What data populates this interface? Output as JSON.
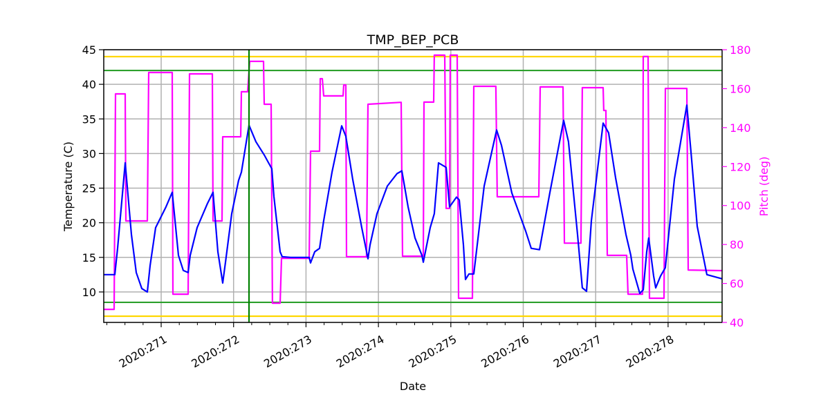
{
  "chart_data": {
    "type": "line",
    "title": "TMP_BEP_PCB",
    "xlabel": "Date",
    "ylabel": "Temperature (C)",
    "y2label": "Pitch (deg)",
    "xlim": [
      270.207,
      278.746
    ],
    "ylim": [
      5.6,
      45
    ],
    "y2lim": [
      40,
      180
    ],
    "grid": true,
    "x_tick_prefix": "2020:",
    "x_ticks": [
      271,
      272,
      273,
      274,
      275,
      276,
      277,
      278
    ],
    "x_tick_labels": [
      "2020:271",
      "2020:272",
      "2020:273",
      "2020:274",
      "2020:275",
      "2020:276",
      "2020:277",
      "2020:278"
    ],
    "y_ticks": [
      10,
      15,
      20,
      25,
      30,
      35,
      40,
      45
    ],
    "y_tick_labels": [
      "10",
      "15",
      "20",
      "25",
      "30",
      "35",
      "40",
      "45"
    ],
    "y2_ticks": [
      40,
      60,
      80,
      100,
      120,
      140,
      160,
      180
    ],
    "y2_tick_labels": [
      "40",
      "60",
      "80",
      "100",
      "120",
      "140",
      "160",
      "180"
    ],
    "colors": {
      "temperature": "#0000ff",
      "pitch": "#ff00ff",
      "planning_limit": "#2ca02c",
      "caution_limit": "#ffd700",
      "marker": "#008000",
      "grid": "#b0b0b0"
    },
    "horizontal_lines": [
      {
        "y": 44,
        "color": "#ffd700"
      },
      {
        "y": 42,
        "color": "#2ca02c"
      },
      {
        "y": 8.5,
        "color": "#2ca02c"
      },
      {
        "y": 6.5,
        "color": "#ffd700"
      }
    ],
    "vertical_line": {
      "x": 272.213,
      "color": "#008000"
    },
    "series": [
      {
        "axis": "left",
        "color": "#0000ff",
        "points": [
          [
            270.207,
            12.5
          ],
          [
            270.36,
            12.5
          ],
          [
            270.398,
            16.3
          ],
          [
            270.503,
            28.65
          ],
          [
            270.589,
            18.3
          ],
          [
            270.656,
            12.8
          ],
          [
            270.732,
            10.5
          ],
          [
            270.809,
            10.0
          ],
          [
            270.847,
            13.8
          ],
          [
            270.923,
            19.3
          ],
          [
            271.067,
            22.3
          ],
          [
            271.153,
            24.4
          ],
          [
            271.239,
            15.3
          ],
          [
            271.305,
            13.1
          ],
          [
            271.372,
            12.8
          ],
          [
            271.401,
            15.3
          ],
          [
            271.496,
            19.3
          ],
          [
            271.64,
            22.8
          ],
          [
            271.716,
            24.4
          ],
          [
            271.783,
            15.8
          ],
          [
            271.85,
            11.3
          ],
          [
            271.888,
            14.3
          ],
          [
            271.974,
            21.3
          ],
          [
            272.069,
            26.1
          ],
          [
            272.108,
            27.3
          ],
          [
            272.213,
            34.1
          ],
          [
            272.308,
            31.7
          ],
          [
            272.423,
            29.8
          ],
          [
            272.48,
            28.7
          ],
          [
            272.528,
            27.8
          ],
          [
            272.557,
            23.8
          ],
          [
            272.643,
            15.8
          ],
          [
            272.671,
            15.1
          ],
          [
            272.786,
            15.0
          ],
          [
            273.044,
            15.0
          ],
          [
            273.063,
            14.2
          ],
          [
            273.12,
            15.8
          ],
          [
            273.187,
            16.3
          ],
          [
            273.244,
            20.3
          ],
          [
            273.359,
            27.3
          ],
          [
            273.493,
            34.0
          ],
          [
            273.55,
            32.5
          ],
          [
            273.645,
            26.3
          ],
          [
            273.77,
            19.3
          ],
          [
            273.856,
            14.8
          ],
          [
            273.884,
            16.8
          ],
          [
            273.98,
            21.3
          ],
          [
            274.123,
            25.3
          ],
          [
            274.257,
            27.1
          ],
          [
            274.324,
            27.5
          ],
          [
            274.41,
            22.3
          ],
          [
            274.505,
            17.8
          ],
          [
            274.601,
            15.3
          ],
          [
            274.62,
            14.3
          ],
          [
            274.715,
            19.3
          ],
          [
            274.772,
            21.3
          ],
          [
            274.83,
            28.65
          ],
          [
            274.935,
            28.0
          ],
          [
            274.983,
            22.3
          ],
          [
            275.078,
            23.7
          ],
          [
            275.116,
            23.3
          ],
          [
            275.174,
            16.8
          ],
          [
            275.202,
            11.8
          ],
          [
            275.25,
            12.6
          ],
          [
            275.317,
            12.6
          ],
          [
            275.46,
            25.3
          ],
          [
            275.632,
            33.4
          ],
          [
            275.699,
            31.2
          ],
          [
            275.842,
            24.3
          ],
          [
            276.033,
            18.8
          ],
          [
            276.11,
            16.3
          ],
          [
            276.224,
            16.1
          ],
          [
            276.367,
            24.3
          ],
          [
            276.558,
            34.8
          ],
          [
            276.625,
            31.7
          ],
          [
            276.75,
            18.3
          ],
          [
            276.816,
            10.6
          ],
          [
            276.874,
            10.1
          ],
          [
            276.941,
            20.3
          ],
          [
            277.103,
            34.4
          ],
          [
            277.179,
            33.0
          ],
          [
            277.275,
            26.5
          ],
          [
            277.418,
            18.3
          ],
          [
            277.485,
            15.3
          ],
          [
            277.514,
            13.3
          ],
          [
            277.609,
            9.8
          ],
          [
            277.657,
            10.3
          ],
          [
            277.705,
            15.8
          ],
          [
            277.733,
            17.8
          ],
          [
            277.8,
            12.3
          ],
          [
            277.829,
            10.6
          ],
          [
            277.896,
            12.3
          ],
          [
            277.962,
            13.5
          ],
          [
            278.087,
            26.3
          ],
          [
            278.259,
            37.0
          ],
          [
            278.325,
            29.2
          ],
          [
            278.402,
            19.5
          ],
          [
            278.536,
            12.5
          ],
          [
            278.746,
            11.9
          ]
        ]
      },
      {
        "axis": "right",
        "color": "#ff00ff",
        "points": [
          [
            270.207,
            46.7
          ],
          [
            270.35,
            46.7
          ],
          [
            270.369,
            157.3
          ],
          [
            270.503,
            157.3
          ],
          [
            270.513,
            92.1
          ],
          [
            270.809,
            92.1
          ],
          [
            270.828,
            168.3
          ],
          [
            271.153,
            168.3
          ],
          [
            271.162,
            54.5
          ],
          [
            271.372,
            54.5
          ],
          [
            271.391,
            167.6
          ],
          [
            271.707,
            167.6
          ],
          [
            271.716,
            92.1
          ],
          [
            271.84,
            92.1
          ],
          [
            271.85,
            135.3
          ],
          [
            272.098,
            135.3
          ],
          [
            272.108,
            158.4
          ],
          [
            272.194,
            158.4
          ],
          [
            272.222,
            174.0
          ],
          [
            272.413,
            174.0
          ],
          [
            272.423,
            152.0
          ],
          [
            272.518,
            152.0
          ],
          [
            272.537,
            49.9
          ],
          [
            272.643,
            49.9
          ],
          [
            272.662,
            72.9
          ],
          [
            273.044,
            72.9
          ],
          [
            273.063,
            127.9
          ],
          [
            273.187,
            127.9
          ],
          [
            273.197,
            165.1
          ],
          [
            273.225,
            165.1
          ],
          [
            273.244,
            156.3
          ],
          [
            273.512,
            156.3
          ],
          [
            273.521,
            161.9
          ],
          [
            273.55,
            161.9
          ],
          [
            273.56,
            73.7
          ],
          [
            273.836,
            73.7
          ],
          [
            273.856,
            152.0
          ],
          [
            274.314,
            153.0
          ],
          [
            274.333,
            74.0
          ],
          [
            274.62,
            74.0
          ],
          [
            274.629,
            153.1
          ],
          [
            274.763,
            153.1
          ],
          [
            274.772,
            177.2
          ],
          [
            274.916,
            177.2
          ],
          [
            274.935,
            98.5
          ],
          [
            274.983,
            98.5
          ],
          [
            274.992,
            177.2
          ],
          [
            275.088,
            177.2
          ],
          [
            275.107,
            52.4
          ],
          [
            275.298,
            52.4
          ],
          [
            275.317,
            161.2
          ],
          [
            275.622,
            161.2
          ],
          [
            275.641,
            104.5
          ],
          [
            276.215,
            104.5
          ],
          [
            276.234,
            160.9
          ],
          [
            276.549,
            160.9
          ],
          [
            276.568,
            80.7
          ],
          [
            276.797,
            80.7
          ],
          [
            276.816,
            160.5
          ],
          [
            277.103,
            160.5
          ],
          [
            277.112,
            148.8
          ],
          [
            277.141,
            148.8
          ],
          [
            277.16,
            74.4
          ],
          [
            277.428,
            74.4
          ],
          [
            277.447,
            54.5
          ],
          [
            277.647,
            54.5
          ],
          [
            277.657,
            176.5
          ],
          [
            277.724,
            176.5
          ],
          [
            277.743,
            52.4
          ],
          [
            277.944,
            52.4
          ],
          [
            277.963,
            160.1
          ],
          [
            278.259,
            160.1
          ],
          [
            278.278,
            66.9
          ],
          [
            278.746,
            66.6
          ]
        ]
      }
    ]
  }
}
